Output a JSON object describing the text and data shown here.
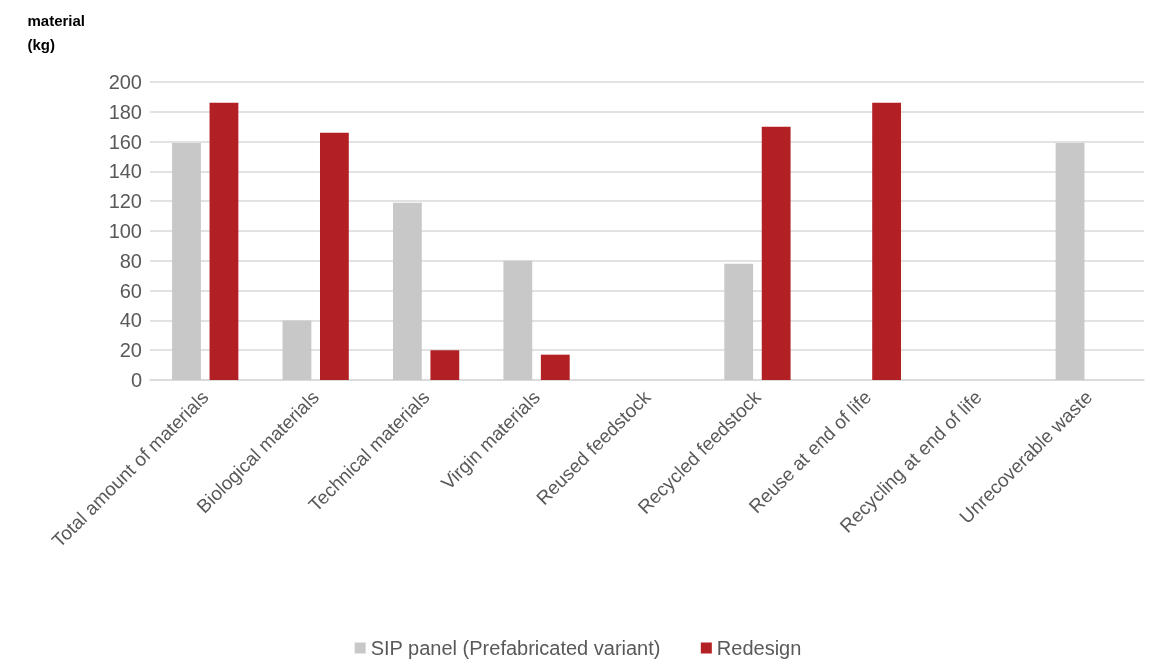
{
  "chart_data": {
    "type": "bar",
    "ylabel": "material\n(kg)",
    "categories": [
      "Total amount of materials",
      "Biological materials",
      "Technical materials",
      "Virgin materials",
      "Reused feedstock",
      "Recycled feedstock",
      "Reuse at end of life",
      "Recycling at end of life",
      "Unrecoverable waste"
    ],
    "series": [
      {
        "name": "SIP panel (Prefabricated variant)",
        "color": "#c8c8c8",
        "values": [
          159,
          40,
          119,
          80,
          0,
          78,
          0,
          0,
          159
        ]
      },
      {
        "name": "Redesign",
        "color": "#b22024",
        "values": [
          186,
          166,
          20,
          17,
          0,
          170,
          186,
          0,
          0
        ]
      }
    ],
    "ylim": [
      0,
      200
    ],
    "yticks": [
      0,
      20,
      40,
      60,
      80,
      100,
      120,
      140,
      160,
      180,
      200
    ],
    "grid": "y",
    "legend": "bottom"
  }
}
